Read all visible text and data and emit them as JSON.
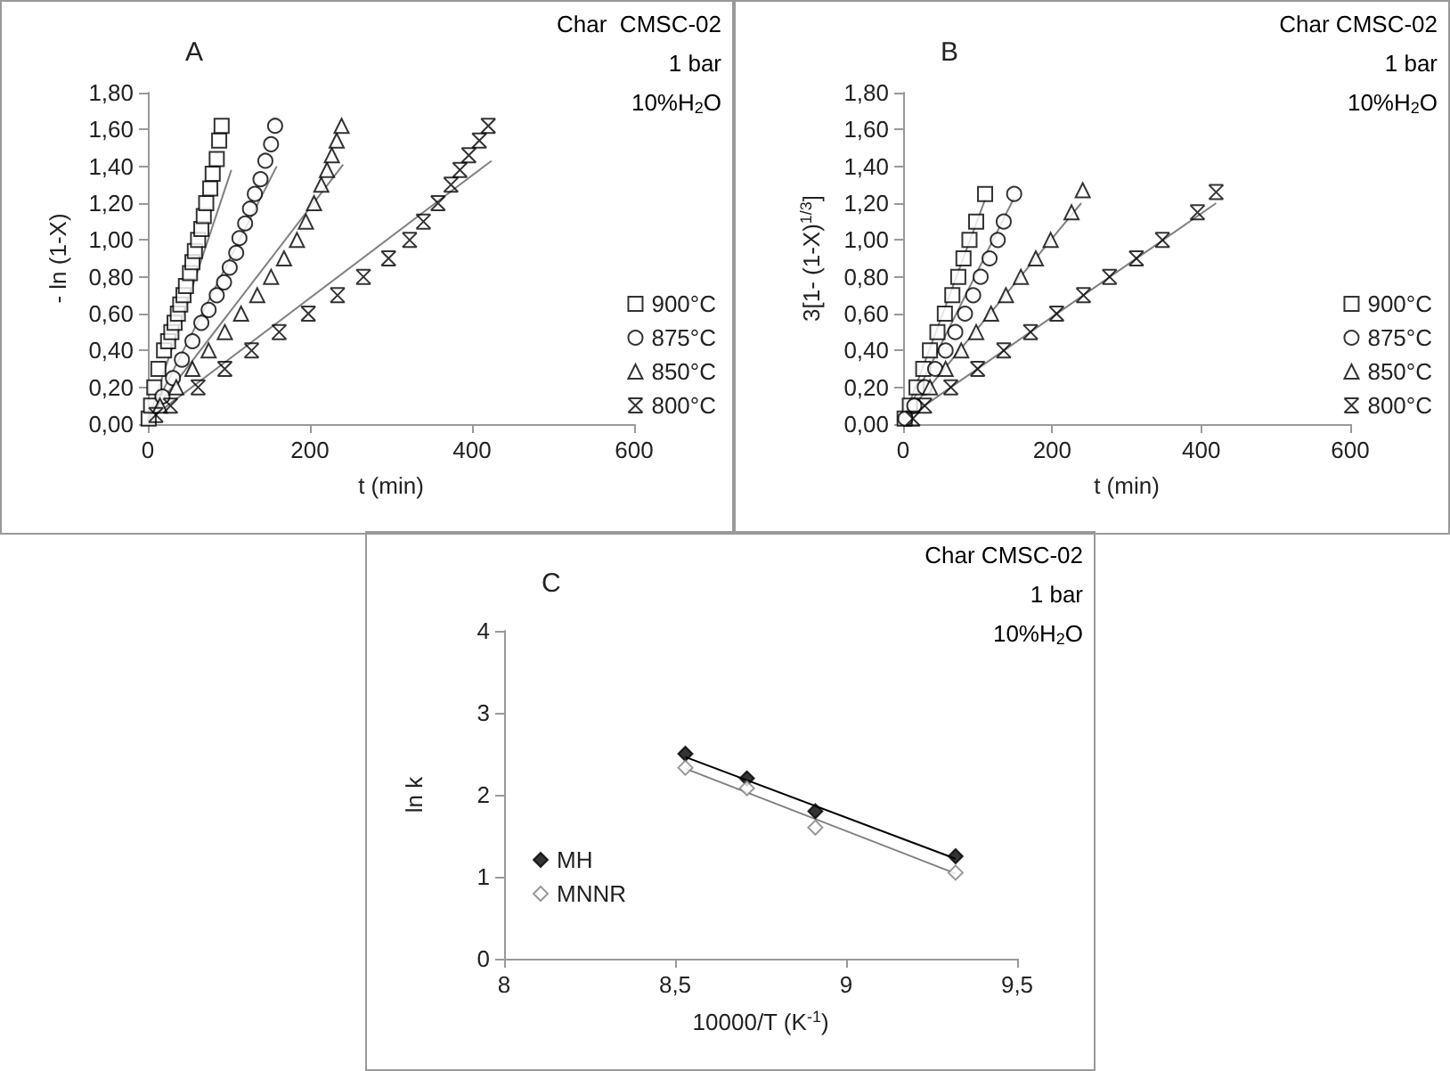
{
  "chart_data": [
    {
      "type": "scatter",
      "title": "A",
      "xlabel": "t (min)",
      "ylabel": "- ln (1-X)",
      "annotations": [
        "Char  CMSC-02",
        "1 bar",
        "10%H$_{2}$O"
      ],
      "xlim": [
        0,
        600
      ],
      "xticks": [
        0,
        200,
        400,
        600
      ],
      "ylim": [
        0,
        1.8
      ],
      "yticks": [
        {
          "value": 0,
          "label": "0,00"
        },
        {
          "value": 0.2,
          "label": "0,20"
        },
        {
          "value": 0.4,
          "label": "0,40"
        },
        {
          "value": 0.6,
          "label": "0,60"
        },
        {
          "value": 0.8,
          "label": "0,80"
        },
        {
          "value": 1,
          "label": "1,00"
        },
        {
          "value": 1.2,
          "label": "1,20"
        },
        {
          "value": 1.4,
          "label": "1,40"
        },
        {
          "value": 1.6,
          "label": "1,60"
        },
        {
          "value": 1.8,
          "label": "1,80"
        }
      ],
      "legend": "right",
      "grid": false,
      "series": [
        {
          "name": "900°C",
          "color": "#000000",
          "marker": "square",
          "x": [
            1,
            4,
            8,
            13,
            20,
            25,
            29,
            33,
            37,
            40,
            44,
            47,
            52,
            55,
            58,
            62,
            66,
            69,
            72,
            77,
            80,
            85,
            88,
            91
          ],
          "values": [
            0.03,
            0.1,
            0.2,
            0.3,
            0.4,
            0.45,
            0.5,
            0.55,
            0.6,
            0.65,
            0.7,
            0.75,
            0.82,
            0.88,
            0.94,
            1.0,
            1.06,
            1.13,
            1.2,
            1.28,
            1.36,
            1.44,
            1.54,
            1.62
          ]
        },
        {
          "name": "875°C",
          "color": "#000000",
          "marker": "circle",
          "x": [
            18,
            31,
            42,
            55,
            66,
            75,
            85,
            94,
            101,
            109,
            113,
            120,
            126,
            132,
            139,
            145,
            152,
            157
          ],
          "values": [
            0.15,
            0.25,
            0.35,
            0.45,
            0.55,
            0.62,
            0.7,
            0.77,
            0.85,
            0.93,
            1.01,
            1.09,
            1.17,
            1.25,
            1.33,
            1.43,
            1.52,
            1.62
          ]
        },
        {
          "name": "850°C",
          "color": "#000000",
          "marker": "triangle",
          "x": [
            15,
            35,
            55,
            75,
            95,
            115,
            135,
            152,
            168,
            184,
            195,
            205,
            214,
            221,
            227,
            233,
            239
          ],
          "values": [
            0.1,
            0.2,
            0.3,
            0.4,
            0.5,
            0.6,
            0.7,
            0.8,
            0.9,
            1.0,
            1.1,
            1.2,
            1.3,
            1.38,
            1.46,
            1.54,
            1.62
          ]
        },
        {
          "name": "800°C",
          "color": "#000000",
          "marker": "cross",
          "x": [
            10,
            28,
            62,
            95,
            128,
            162,
            198,
            234,
            266,
            297,
            323,
            340,
            358,
            374,
            385,
            396,
            409,
            420
          ],
          "values": [
            0.05,
            0.1,
            0.2,
            0.3,
            0.4,
            0.5,
            0.6,
            0.7,
            0.8,
            0.9,
            1.0,
            1.1,
            1.2,
            1.3,
            1.38,
            1.46,
            1.54,
            1.62
          ]
        },
        {
          "type": "line",
          "color": "#808080",
          "marker": "none",
          "x": [
            0,
            103
          ],
          "values": [
            0.02,
            1.38
          ]
        },
        {
          "type": "line",
          "color": "#808080",
          "marker": "none",
          "x": [
            0,
            159
          ],
          "values": [
            0.02,
            1.4
          ]
        },
        {
          "type": "line",
          "color": "#808080",
          "marker": "none",
          "x": [
            0,
            241
          ],
          "values": [
            0.03,
            1.41
          ]
        },
        {
          "type": "line",
          "color": "#808080",
          "marker": "none",
          "x": [
            0,
            424
          ],
          "values": [
            0.02,
            1.43
          ]
        }
      ]
    },
    {
      "type": "scatter",
      "title": "B",
      "xlabel": "t (min)",
      "ylabel": "3[1- (1-X)$^{1/3}$]",
      "annotations": [
        "Char CMSC-02",
        "1 bar",
        "10%H$_{2}$O"
      ],
      "xlim": [
        0,
        600
      ],
      "xticks": [
        0,
        200,
        400,
        600
      ],
      "ylim": [
        0,
        1.8
      ],
      "yticks": [
        {
          "value": 0,
          "label": "0,00"
        },
        {
          "value": 0.2,
          "label": "0,20"
        },
        {
          "value": 0.4,
          "label": "0,40"
        },
        {
          "value": 0.6,
          "label": "0,60"
        },
        {
          "value": 0.8,
          "label": "0,80"
        },
        {
          "value": 1,
          "label": "1,00"
        },
        {
          "value": 1.2,
          "label": "1,20"
        },
        {
          "value": 1.4,
          "label": "1,40"
        },
        {
          "value": 1.6,
          "label": "1,60"
        },
        {
          "value": 1.8,
          "label": "1,80"
        }
      ],
      "legend": "right",
      "grid": false,
      "series": [
        {
          "name": "900°C",
          "color": "#000000",
          "marker": "square",
          "x": [
            2,
            9,
            18,
            27,
            36,
            46,
            56,
            66,
            74,
            81,
            89,
            98,
            110
          ],
          "values": [
            0.03,
            0.1,
            0.2,
            0.3,
            0.4,
            0.5,
            0.6,
            0.7,
            0.8,
            0.9,
            1.0,
            1.1,
            1.25
          ]
        },
        {
          "name": "875°C",
          "color": "#000000",
          "marker": "circle",
          "x": [
            3,
            15,
            29,
            43,
            57,
            70,
            83,
            94,
            104,
            116,
            127,
            135,
            149
          ],
          "values": [
            0.03,
            0.1,
            0.2,
            0.3,
            0.4,
            0.5,
            0.6,
            0.7,
            0.8,
            0.9,
            1.0,
            1.1,
            1.25
          ]
        },
        {
          "name": "850°C",
          "color": "#000000",
          "marker": "triangle",
          "x": [
            36,
            57,
            78,
            98,
            118,
            138,
            158,
            178,
            198,
            226,
            241
          ],
          "values": [
            0.2,
            0.3,
            0.4,
            0.5,
            0.6,
            0.7,
            0.8,
            0.9,
            1.0,
            1.15,
            1.27
          ]
        },
        {
          "name": "800°C",
          "color": "#000000",
          "marker": "cross",
          "x": [
            13,
            29,
            64,
            100,
            135,
            171,
            206,
            242,
            277,
            313,
            348,
            395,
            420
          ],
          "values": [
            0.03,
            0.1,
            0.2,
            0.3,
            0.4,
            0.5,
            0.6,
            0.7,
            0.8,
            0.9,
            1.0,
            1.15,
            1.26
          ]
        },
        {
          "type": "line",
          "color": "#808080",
          "marker": "none",
          "x": [
            0,
            110
          ],
          "values": [
            0.02,
            1.22
          ]
        },
        {
          "type": "line",
          "color": "#808080",
          "marker": "none",
          "x": [
            0,
            149
          ],
          "values": [
            0.02,
            1.23
          ]
        },
        {
          "type": "line",
          "color": "#808080",
          "marker": "none",
          "x": [
            0,
            239
          ],
          "values": [
            0.03,
            1.2
          ]
        },
        {
          "type": "line",
          "color": "#808080",
          "marker": "none",
          "x": [
            0,
            420
          ],
          "values": [
            0.02,
            1.2
          ]
        }
      ]
    },
    {
      "type": "scatter",
      "title": "C",
      "xlabel": "10000/T (K$^{-1}$)",
      "ylabel": "ln k",
      "annotations": [
        "Char CMSC-02",
        "1 bar",
        "10%H$_{2}$O"
      ],
      "xlim": [
        8,
        9.5
      ],
      "xticks": [
        8,
        {
          "value": 8.5,
          "label": "8,5"
        },
        9,
        {
          "value": 9.5,
          "label": "9,5"
        }
      ],
      "ylim": [
        0,
        4
      ],
      "yticks": [
        0,
        1,
        2,
        3,
        4
      ],
      "legend": "left",
      "grid": false,
      "series": [
        {
          "name": "MH",
          "color": "#000000",
          "marker": "diamond",
          "x": [
            8.53,
            8.71,
            8.91,
            9.32
          ],
          "values": [
            2.5,
            2.2,
            1.8,
            1.25
          ]
        },
        {
          "name": "MNNR",
          "color": "#808080",
          "marker": "diamond",
          "x": [
            8.53,
            8.71,
            8.91,
            9.32
          ],
          "values": [
            2.33,
            2.08,
            1.6,
            1.05
          ]
        },
        {
          "type": "line",
          "color": "#000000",
          "marker": "none",
          "x": [
            8.53,
            9.32
          ],
          "values": [
            2.46,
            1.22
          ]
        },
        {
          "type": "line",
          "color": "#808080",
          "marker": "none",
          "x": [
            8.53,
            9.32
          ],
          "values": [
            2.32,
            1.04
          ]
        }
      ]
    }
  ]
}
